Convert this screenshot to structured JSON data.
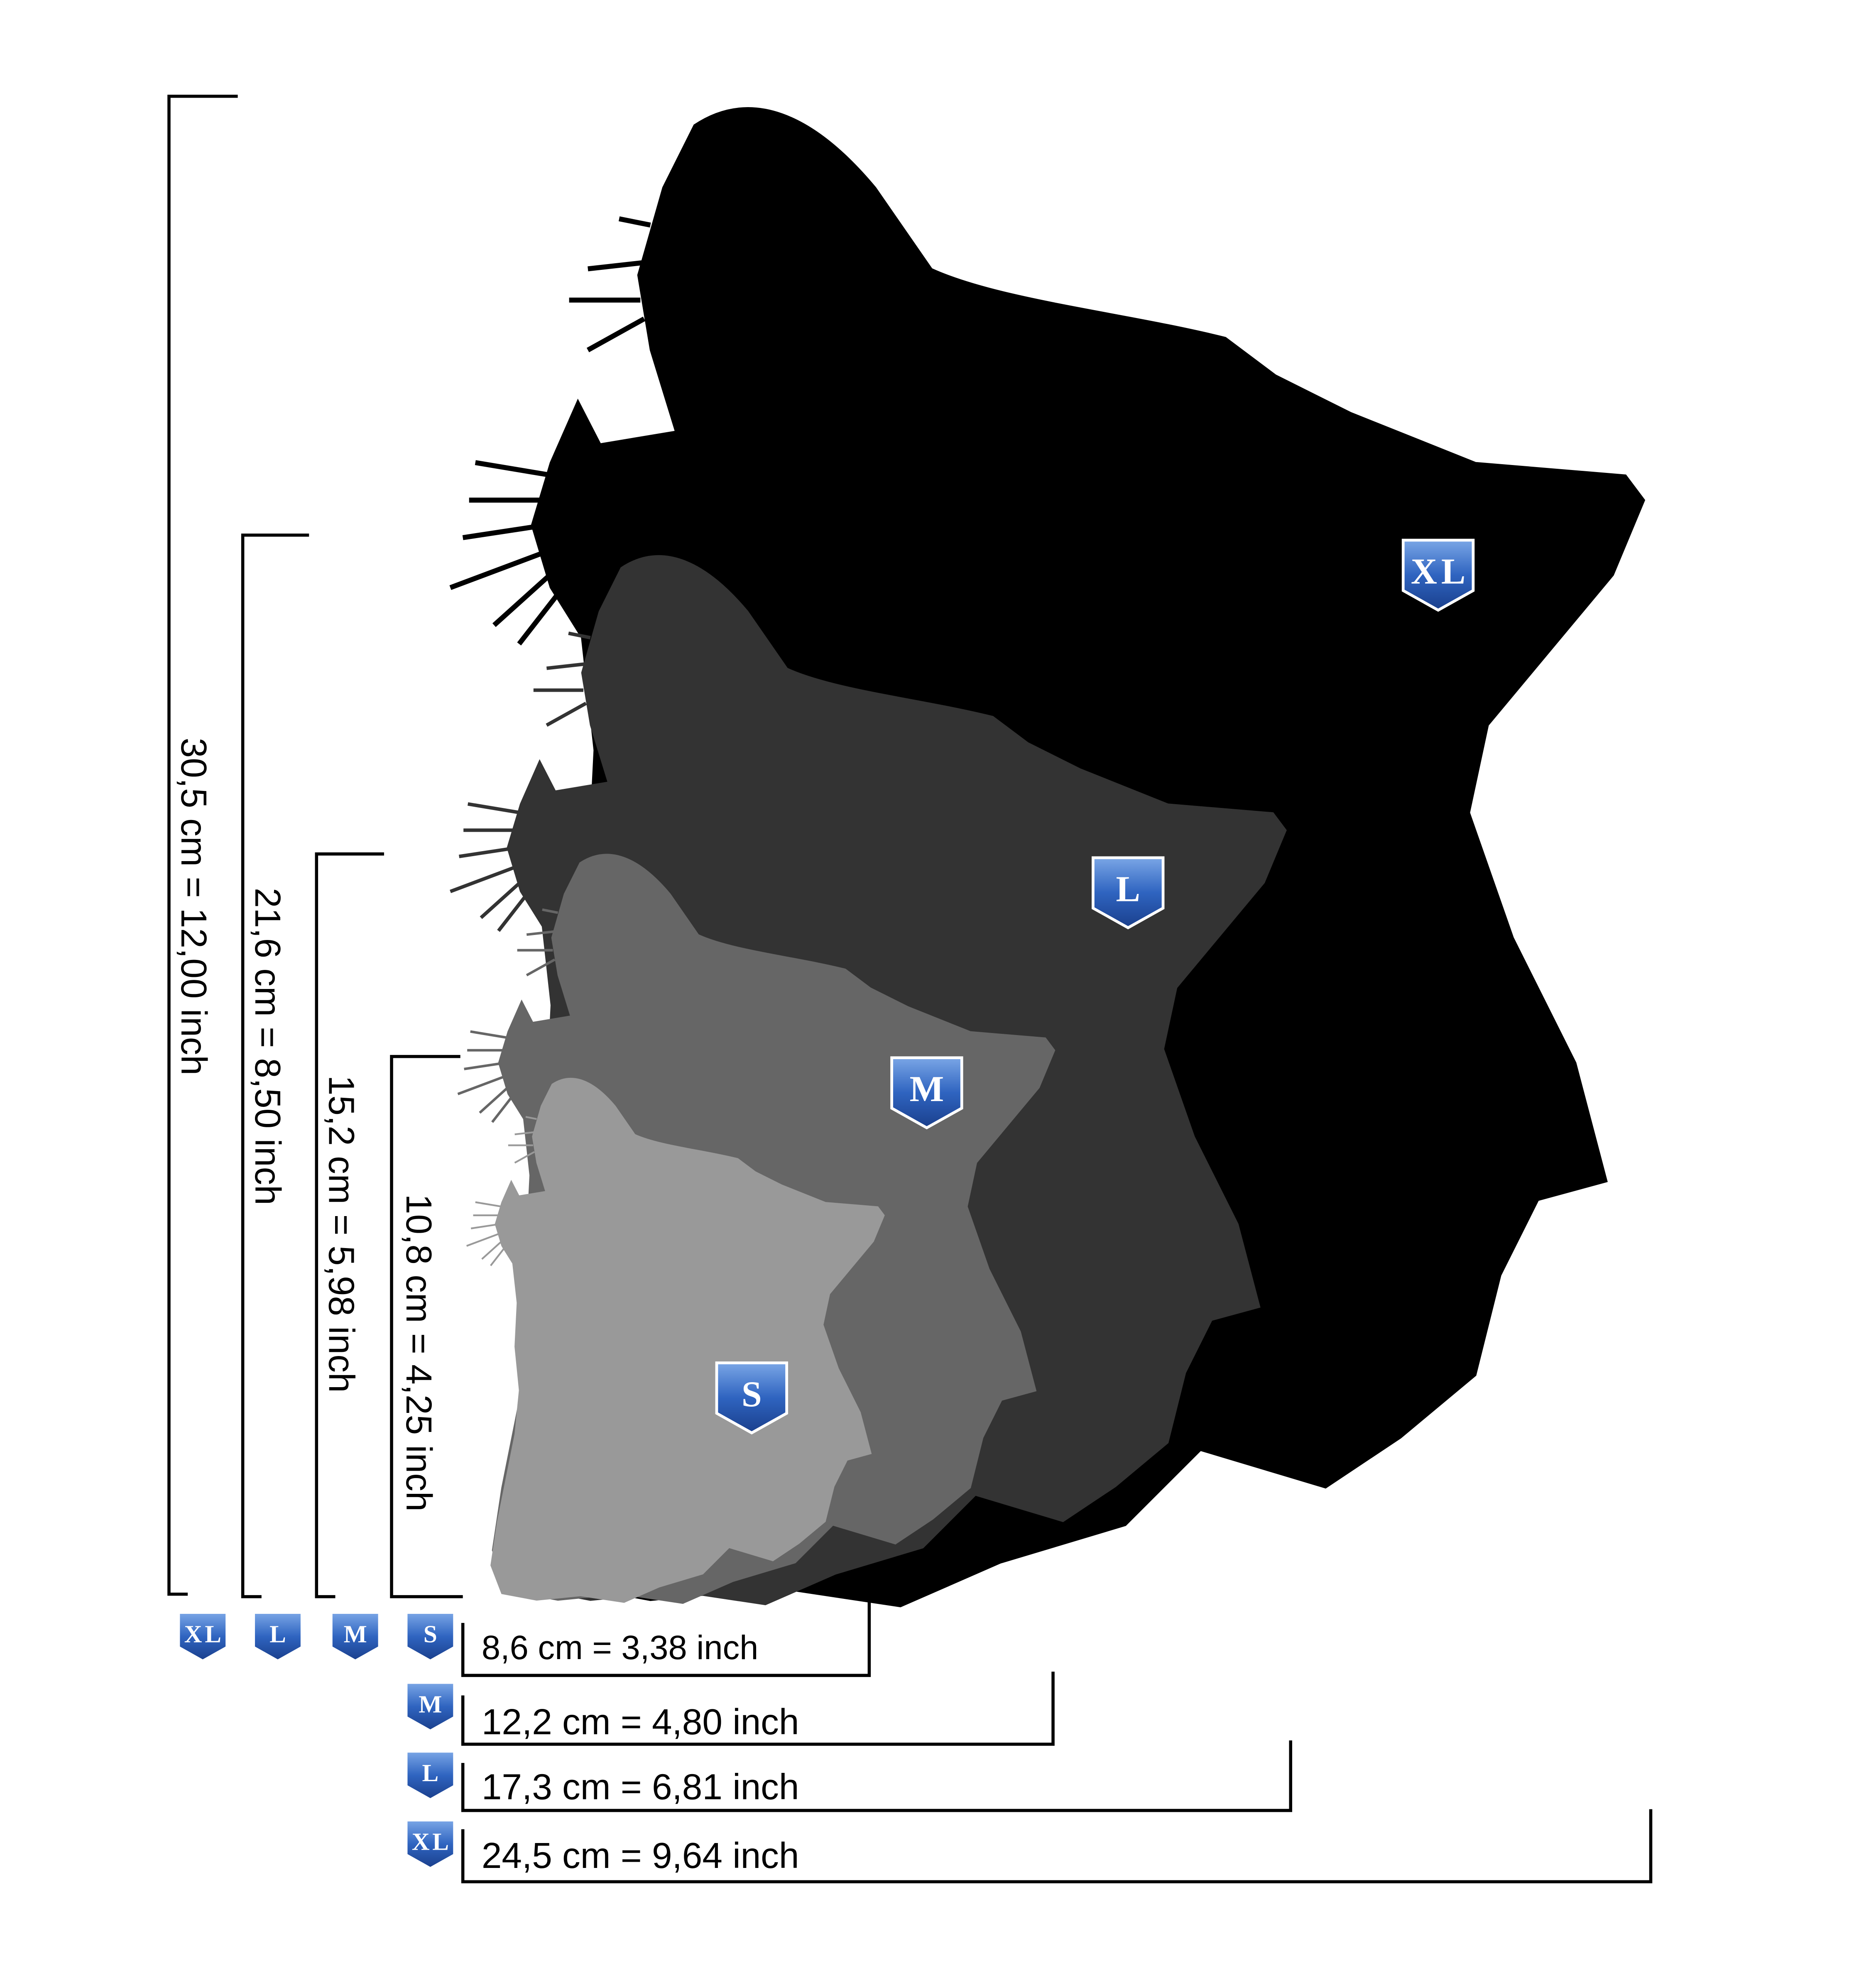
{
  "silhouettes": [
    "XL",
    "L",
    "M",
    "S"
  ],
  "heights": [
    {
      "badge": "XL",
      "label": "30,5  cm = 12,00 inch"
    },
    {
      "badge": "L",
      "label": "21,6 cm = 8,50 inch"
    },
    {
      "badge": "M",
      "label": "15,2 cm = 5,98 inch"
    },
    {
      "badge": "S",
      "label": "10,8 cm = 4,25 inch"
    }
  ],
  "widths": [
    {
      "badge": "S",
      "label": "8,6 cm = 3,38 inch"
    },
    {
      "badge": "M",
      "label": "12,2 cm = 4,80 inch"
    },
    {
      "badge": "L",
      "label": "17,3 cm = 6,81 inch"
    },
    {
      "badge": "XL",
      "label": "24,5 cm = 9,64 inch"
    }
  ]
}
